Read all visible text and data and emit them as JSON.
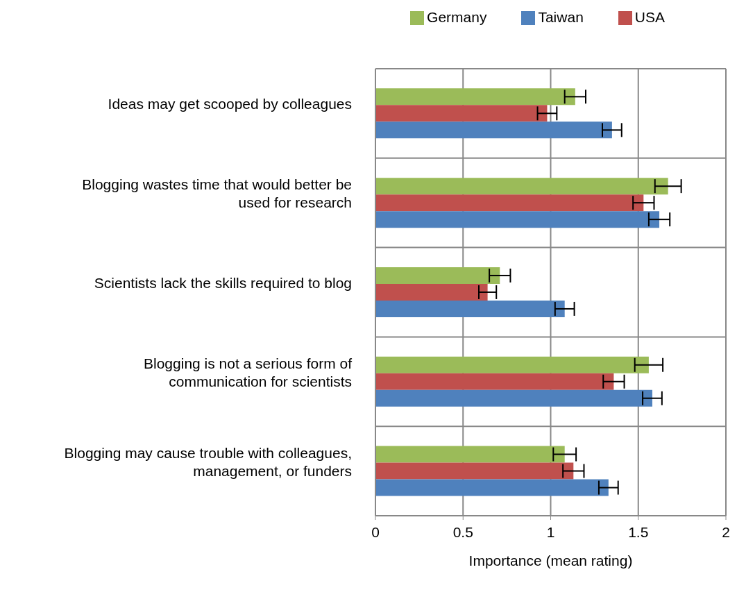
{
  "chart_data": {
    "type": "bar",
    "orientation": "horizontal",
    "xlabel": "Importance (mean rating)",
    "categories": [
      "Ideas may get scooped by colleagues",
      "Blogging wastes time that would better be used for research",
      "Scientists lack the skills required to blog",
      "Blogging is not a serious form of communication for scientists",
      "Blogging may cause trouble with colleagues, management, or funders"
    ],
    "series": [
      {
        "name": "Germany",
        "color": "#9bbb59",
        "values": [
          1.14,
          1.67,
          0.71,
          1.56,
          1.08
        ],
        "errors": [
          0.06,
          0.075,
          0.06,
          0.08,
          0.065
        ]
      },
      {
        "name": "USA",
        "color": "#c0504d",
        "values": [
          0.98,
          1.53,
          0.64,
          1.36,
          1.13
        ],
        "errors": [
          0.055,
          0.06,
          0.05,
          0.06,
          0.06
        ]
      },
      {
        "name": "Taiwan",
        "color": "#4f81bd",
        "values": [
          1.35,
          1.62,
          1.08,
          1.58,
          1.33
        ],
        "errors": [
          0.055,
          0.06,
          0.055,
          0.055,
          0.055
        ]
      }
    ],
    "xlim": [
      0,
      2
    ],
    "xticks": [
      0,
      0.5,
      1,
      1.5,
      2
    ],
    "grid": true,
    "legend": "top right"
  }
}
